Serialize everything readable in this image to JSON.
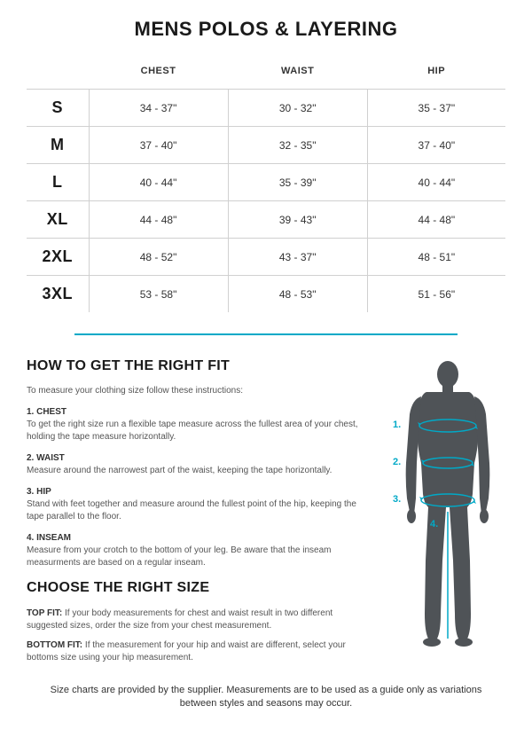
{
  "title": "MENS POLOS & LAYERING",
  "table": {
    "headers": [
      "",
      "CHEST",
      "WAIST",
      "HIP"
    ],
    "rows": [
      {
        "size": "S",
        "chest": "34 - 37\"",
        "waist": "30 - 32\"",
        "hip": "35 - 37\""
      },
      {
        "size": "M",
        "chest": "37 - 40\"",
        "waist": "32 - 35\"",
        "hip": "37 - 40\""
      },
      {
        "size": "L",
        "chest": "40 - 44\"",
        "waist": "35 - 39\"",
        "hip": "40 - 44\""
      },
      {
        "size": "XL",
        "chest": "44 - 48\"",
        "waist": "39 - 43\"",
        "hip": "44 - 48\""
      },
      {
        "size": "2XL",
        "chest": "48 - 52\"",
        "waist": "43 - 37\"",
        "hip": "48 - 51\""
      },
      {
        "size": "3XL",
        "chest": "53 - 58\"",
        "waist": "48 - 53\"",
        "hip": "51 - 56\""
      }
    ]
  },
  "fit": {
    "heading": "HOW TO GET THE RIGHT FIT",
    "intro": "To measure your clothing size follow these instructions:",
    "items": [
      {
        "label": "1. CHEST",
        "text": "To get the right size run a flexible tape measure across the fullest area of your chest, holding the tape measure horizontally."
      },
      {
        "label": "2. WAIST",
        "text": "Measure around the narrowest part of the waist, keeping the tape horizontally."
      },
      {
        "label": "3. HIP",
        "text": "Stand with feet together and measure around the fullest point of the hip, keeping the tape parallel to the floor."
      },
      {
        "label": "4. INSEAM",
        "text": "Measure from your crotch to the bottom of your leg. Be aware that the inseam measurments are based on a regular inseam."
      }
    ]
  },
  "choose": {
    "heading": "CHOOSE THE RIGHT SIZE",
    "items": [
      {
        "label": "TOP FIT:",
        "text": " If your body measurements for chest and waist result in two different suggested sizes, order the size from your chest measurement."
      },
      {
        "label": "BOTTOM FIT:",
        "text": " If the measurement for your hip and waist are different, select your bottoms size using your hip measurement."
      }
    ]
  },
  "figure": {
    "silhouette_color": "#4f5357",
    "line_color": "#00a9c7",
    "label_color": "#00a9c7",
    "labels": [
      "1.",
      "2.",
      "3.",
      "4."
    ],
    "label_fontsize": 11
  },
  "footnote": "Size charts are provided by the supplier. Measurements are to be used as a guide only as variations between styles and seasons may occur.",
  "colors": {
    "background": "#ffffff",
    "text": "#333333",
    "heading": "#1a1a1a",
    "border": "#d0d0d0",
    "accent": "#00a9c7"
  }
}
